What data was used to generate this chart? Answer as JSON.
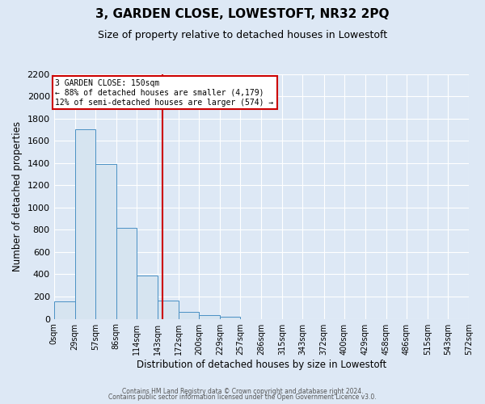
{
  "title": "3, GARDEN CLOSE, LOWESTOFT, NR32 2PQ",
  "subtitle": "Size of property relative to detached houses in Lowestoft",
  "xlabel": "Distribution of detached houses by size in Lowestoft",
  "ylabel": "Number of detached properties",
  "bin_edges": [
    0,
    29,
    57,
    86,
    114,
    143,
    172,
    200,
    229,
    257,
    286,
    315,
    343,
    372,
    400,
    429,
    458,
    486,
    515,
    543,
    572
  ],
  "bin_counts": [
    160,
    1700,
    1390,
    820,
    390,
    165,
    65,
    30,
    20,
    0,
    0,
    0,
    0,
    0,
    0,
    0,
    0,
    0,
    0,
    0
  ],
  "property_size": 150,
  "bar_facecolor": "#d6e4f0",
  "bar_edgecolor": "#4a90c4",
  "vline_color": "#cc0000",
  "annotation_box_color": "#cc0000",
  "annotation_title": "3 GARDEN CLOSE: 150sqm",
  "annotation_line1": "← 88% of detached houses are smaller (4,179)",
  "annotation_line2": "12% of semi-detached houses are larger (574) →",
  "ylim": [
    0,
    2200
  ],
  "yticks": [
    0,
    200,
    400,
    600,
    800,
    1000,
    1200,
    1400,
    1600,
    1800,
    2000,
    2200
  ],
  "tick_labels": [
    "0sqm",
    "29sqm",
    "57sqm",
    "86sqm",
    "114sqm",
    "143sqm",
    "172sqm",
    "200sqm",
    "229sqm",
    "257sqm",
    "286sqm",
    "315sqm",
    "343sqm",
    "372sqm",
    "400sqm",
    "429sqm",
    "458sqm",
    "486sqm",
    "515sqm",
    "543sqm",
    "572sqm"
  ],
  "footer_line1": "Contains HM Land Registry data © Crown copyright and database right 2024.",
  "footer_line2": "Contains public sector information licensed under the Open Government Licence v3.0.",
  "background_color": "#dde8f5",
  "plot_background": "#dde8f5",
  "title_fontsize": 11,
  "subtitle_fontsize": 9
}
